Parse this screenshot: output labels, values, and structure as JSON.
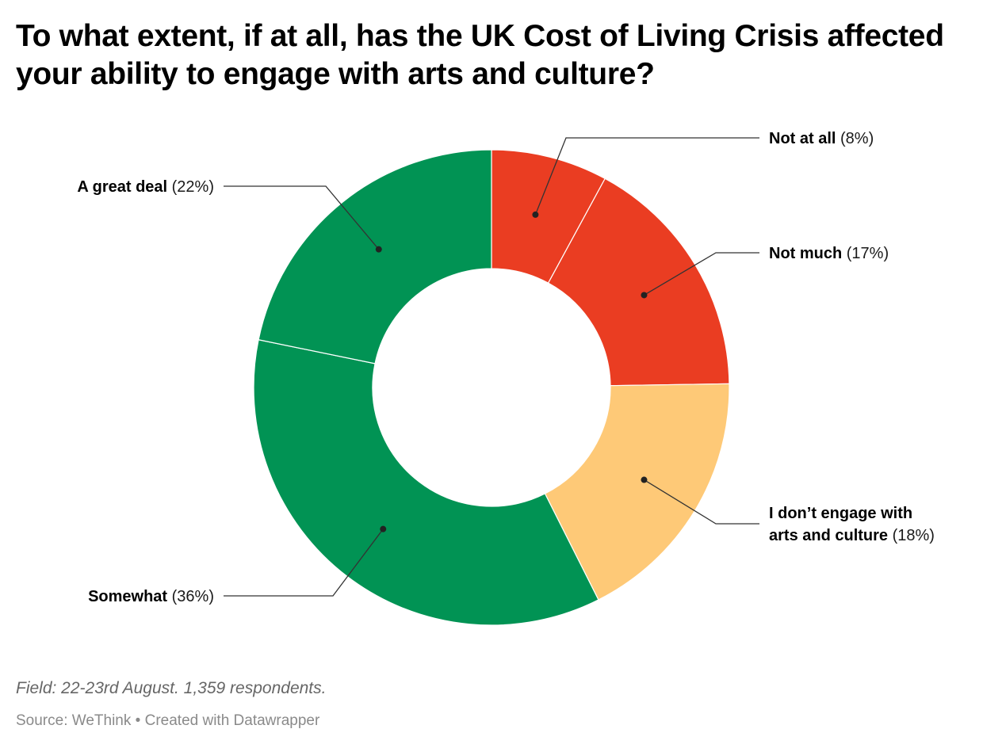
{
  "title": "To what extent, if at all, has the UK Cost of Living Crisis affected your ability to engage with arts and culture?",
  "notes": "Field: 22-23rd August. 1,359 respondents.",
  "source": {
    "prefix": "Source: WeThink",
    "separator": "•",
    "credit": "Created with Datawrapper"
  },
  "chart_data": {
    "type": "pie",
    "variant": "donut",
    "title": "To what extent, if at all, has the UK Cost of Living Crisis affected your ability to engage with arts and culture?",
    "unit": "%",
    "slices": [
      {
        "label": "Not at all",
        "value": 8,
        "color": "#ea3d22"
      },
      {
        "label": "Not much",
        "value": 17,
        "color": "#ea3d22"
      },
      {
        "label": "I don’t engage with arts and culture",
        "value": 18,
        "color": "#fec977"
      },
      {
        "label": "Somewhat",
        "value": 36,
        "color": "#019354"
      },
      {
        "label": "A great deal",
        "value": 22,
        "color": "#019354"
      }
    ],
    "labels_display": [
      {
        "lines": [
          "Not at all"
        ],
        "pct": "(8%)"
      },
      {
        "lines": [
          "Not much"
        ],
        "pct": "(17%)"
      },
      {
        "lines": [
          "I don’t engage with",
          "arts and culture"
        ],
        "pct": "(18%)"
      },
      {
        "lines": [
          "Somewhat"
        ],
        "pct": "(36%)"
      },
      {
        "lines": [
          "A great deal"
        ],
        "pct": "(22%)"
      }
    ],
    "legend": "none (direct labels)"
  }
}
